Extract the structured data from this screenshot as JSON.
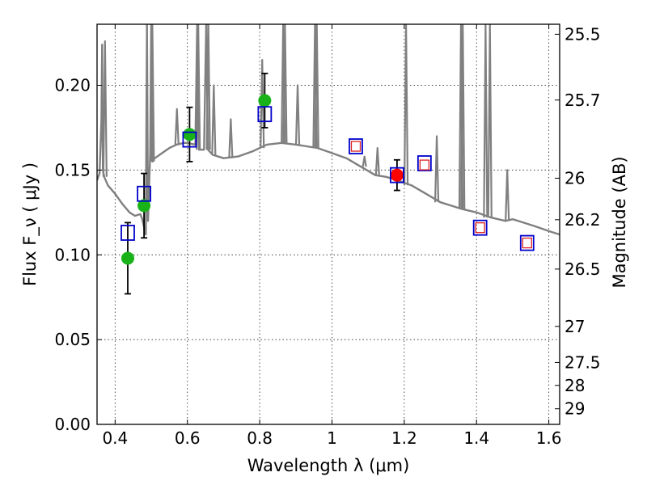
{
  "chart_data": {
    "type": "scatter",
    "xlabel": "Wavelength  λ (μm)",
    "ylabel": "Flux  F_ν  ( μJy )",
    "y2label": "Magnitude (AB)",
    "xlim": [
      0.35,
      1.63
    ],
    "ylim": [
      0.0,
      0.236
    ],
    "grid": true,
    "x_ticks": [
      0.4,
      0.6,
      0.8,
      1.0,
      1.2,
      1.4,
      1.6
    ],
    "x_tick_labels": [
      "0.4",
      "0.6",
      "0.8",
      "1",
      "1.2",
      "1.4",
      "1.6"
    ],
    "y_ticks": [
      0.0,
      0.05,
      0.1,
      0.15,
      0.2
    ],
    "y_tick_labels": [
      "0.00",
      "0.05",
      "0.10",
      "0.15",
      "0.20"
    ],
    "magnitude_ticks": [
      {
        "label": "25.5",
        "flux": 0.2301
      },
      {
        "label": "25.7",
        "flux": 0.1913
      },
      {
        "label": "26",
        "flux": 0.1452
      },
      {
        "label": "26.2",
        "flux": 0.1207
      },
      {
        "label": "26.5",
        "flux": 0.0916
      },
      {
        "label": "27",
        "flux": 0.0578
      },
      {
        "label": "27.5",
        "flux": 0.0365
      },
      {
        "label": "28",
        "flux": 0.023
      },
      {
        "label": "29",
        "flux": 0.0092
      }
    ],
    "series": [
      {
        "marker": "circle",
        "color": "#19b319",
        "points": [
          {
            "x": 0.435,
            "y": 0.098,
            "err": 0.021
          },
          {
            "x": 0.48,
            "y": 0.129,
            "err": 0.019
          },
          {
            "x": 0.606,
            "y": 0.171,
            "err": 0.016
          },
          {
            "x": 0.814,
            "y": 0.191,
            "err": 0.016
          }
        ]
      },
      {
        "marker": "circle",
        "color": "#ff0000",
        "points": [
          {
            "x": 1.18,
            "y": 0.147,
            "err": 0.009
          }
        ]
      },
      {
        "marker": "open-square",
        "color": "#0000cc",
        "points": [
          {
            "x": 0.435,
            "y": 0.113
          },
          {
            "x": 0.48,
            "y": 0.136
          },
          {
            "x": 0.606,
            "y": 0.168
          },
          {
            "x": 0.814,
            "y": 0.183
          },
          {
            "x": 1.066,
            "y": 0.164
          },
          {
            "x": 1.18,
            "y": 0.147
          },
          {
            "x": 1.256,
            "y": 0.154
          },
          {
            "x": 1.41,
            "y": 0.116
          },
          {
            "x": 1.54,
            "y": 0.107
          }
        ]
      },
      {
        "marker": "small-open-square",
        "color": "#dd2222",
        "points": [
          {
            "x": 1.066,
            "y": 0.164
          },
          {
            "x": 1.256,
            "y": 0.153
          },
          {
            "x": 1.41,
            "y": 0.116
          },
          {
            "x": 1.54,
            "y": 0.107
          }
        ]
      },
      {
        "type": "line",
        "color": "#808080",
        "points": [
          {
            "x": 0.35,
            "y": 0.144
          },
          {
            "x": 0.357,
            "y": 0.148
          },
          {
            "x": 0.362,
            "y": 0.179
          },
          {
            "x": 0.364,
            "y": 0.224
          },
          {
            "x": 0.366,
            "y": 0.15
          },
          {
            "x": 0.37,
            "y": 0.146
          },
          {
            "x": 0.38,
            "y": 0.141
          },
          {
            "x": 0.4,
            "y": 0.136
          },
          {
            "x": 0.42,
            "y": 0.13
          },
          {
            "x": 0.44,
            "y": 0.125
          },
          {
            "x": 0.455,
            "y": 0.123
          },
          {
            "x": 0.47,
            "y": 0.124
          },
          {
            "x": 0.475,
            "y": 0.121
          },
          {
            "x": 0.485,
            "y": 0.112
          },
          {
            "x": 0.488,
            "y": 0.236
          },
          {
            "x": 0.491,
            "y": 0.12
          },
          {
            "x": 0.497,
            "y": 0.16
          },
          {
            "x": 0.5,
            "y": 0.236
          },
          {
            "x": 0.503,
            "y": 0.155
          },
          {
            "x": 0.51,
            "y": 0.157
          },
          {
            "x": 0.53,
            "y": 0.16
          },
          {
            "x": 0.55,
            "y": 0.163
          },
          {
            "x": 0.57,
            "y": 0.165
          },
          {
            "x": 0.59,
            "y": 0.166
          },
          {
            "x": 0.6,
            "y": 0.166
          },
          {
            "x": 0.622,
            "y": 0.165
          },
          {
            "x": 0.627,
            "y": 0.236
          },
          {
            "x": 0.632,
            "y": 0.162
          },
          {
            "x": 0.646,
            "y": 0.162
          },
          {
            "x": 0.652,
            "y": 0.236
          },
          {
            "x": 0.657,
            "y": 0.162
          },
          {
            "x": 0.67,
            "y": 0.159
          },
          {
            "x": 0.7,
            "y": 0.157
          },
          {
            "x": 0.74,
            "y": 0.158
          },
          {
            "x": 0.78,
            "y": 0.161
          },
          {
            "x": 0.8,
            "y": 0.163
          },
          {
            "x": 0.82,
            "y": 0.165
          },
          {
            "x": 0.86,
            "y": 0.166
          },
          {
            "x": 0.9,
            "y": 0.165
          },
          {
            "x": 0.93,
            "y": 0.164
          },
          {
            "x": 0.96,
            "y": 0.163
          },
          {
            "x": 1.0,
            "y": 0.16
          },
          {
            "x": 1.04,
            "y": 0.157
          },
          {
            "x": 1.08,
            "y": 0.152
          },
          {
            "x": 1.12,
            "y": 0.147
          },
          {
            "x": 1.15,
            "y": 0.146
          },
          {
            "x": 1.18,
            "y": 0.144
          },
          {
            "x": 1.22,
            "y": 0.141
          },
          {
            "x": 1.26,
            "y": 0.136
          },
          {
            "x": 1.3,
            "y": 0.131
          },
          {
            "x": 1.33,
            "y": 0.129
          },
          {
            "x": 1.36,
            "y": 0.127
          },
          {
            "x": 1.4,
            "y": 0.125
          },
          {
            "x": 1.44,
            "y": 0.122
          },
          {
            "x": 1.48,
            "y": 0.12
          },
          {
            "x": 1.5,
            "y": 0.121
          },
          {
            "x": 1.53,
            "y": 0.119
          },
          {
            "x": 1.56,
            "y": 0.117
          },
          {
            "x": 1.6,
            "y": 0.114
          },
          {
            "x": 1.63,
            "y": 0.112
          }
        ]
      },
      {
        "type": "emission-lines",
        "color": "#808080",
        "points": [
          {
            "x": 0.372,
            "y": 0.226
          },
          {
            "x": 0.501,
            "y": 0.236
          },
          {
            "x": 0.503,
            "y": 0.236
          },
          {
            "x": 0.571,
            "y": 0.186
          },
          {
            "x": 0.63,
            "y": 0.236
          },
          {
            "x": 0.654,
            "y": 0.236
          },
          {
            "x": 0.658,
            "y": 0.236
          },
          {
            "x": 0.673,
            "y": 0.2
          },
          {
            "x": 0.72,
            "y": 0.18
          },
          {
            "x": 0.807,
            "y": 0.215
          },
          {
            "x": 0.865,
            "y": 0.236
          },
          {
            "x": 0.87,
            "y": 0.236
          },
          {
            "x": 0.905,
            "y": 0.2
          },
          {
            "x": 0.953,
            "y": 0.236
          },
          {
            "x": 0.958,
            "y": 0.236
          },
          {
            "x": 1.09,
            "y": 0.158
          },
          {
            "x": 1.126,
            "y": 0.163
          },
          {
            "x": 1.205,
            "y": 0.236
          },
          {
            "x": 1.29,
            "y": 0.17
          },
          {
            "x": 1.357,
            "y": 0.236
          },
          {
            "x": 1.362,
            "y": 0.236
          },
          {
            "x": 1.425,
            "y": 0.236
          },
          {
            "x": 1.437,
            "y": 0.236
          },
          {
            "x": 1.485,
            "y": 0.15
          }
        ]
      }
    ]
  }
}
